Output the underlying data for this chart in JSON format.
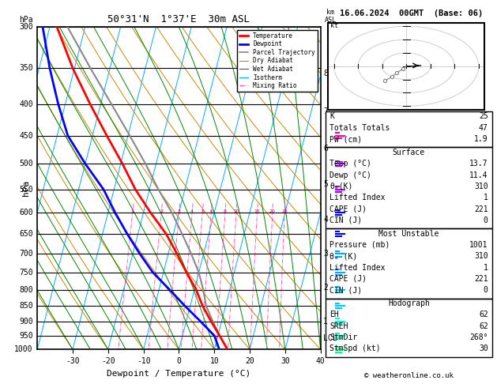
{
  "title_left": "50°31'N  1°37'E  30m ASL",
  "title_right": "16.06.2024  00GMT  (Base: 06)",
  "xlabel": "Dewpoint / Temperature (°C)",
  "ylabel_left": "hPa",
  "pressure_levels": [
    300,
    350,
    400,
    450,
    500,
    550,
    600,
    650,
    700,
    750,
    800,
    850,
    900,
    950,
    1000
  ],
  "xtick_vals": [
    -30,
    -20,
    -10,
    0,
    10,
    20,
    30,
    40
  ],
  "xlim": [
    -40,
    40
  ],
  "km_ticks": [
    1,
    2,
    3,
    4,
    5,
    6,
    7,
    8
  ],
  "km_to_p": {
    "1": 900,
    "2": 795,
    "3": 700,
    "4": 616,
    "5": 540,
    "6": 472,
    "7": 411,
    "8": 357
  },
  "lcl_pressure": 960,
  "temperature_profile": {
    "pressure": [
      1000,
      950,
      900,
      850,
      800,
      750,
      700,
      650,
      600,
      550,
      500,
      450,
      400,
      350,
      300
    ],
    "temp": [
      13.7,
      10.5,
      7.0,
      3.5,
      0.5,
      -3.5,
      -7.5,
      -12.0,
      -18.0,
      -24.0,
      -29.5,
      -36.0,
      -43.0,
      -50.5,
      -58.0
    ]
  },
  "dewpoint_profile": {
    "pressure": [
      1000,
      950,
      900,
      850,
      800,
      750,
      700,
      650,
      600,
      550,
      500,
      450,
      400,
      350,
      300
    ],
    "temp": [
      11.4,
      9.0,
      4.0,
      -1.5,
      -7.0,
      -13.0,
      -18.0,
      -23.0,
      -28.0,
      -33.0,
      -40.0,
      -47.0,
      -52.0,
      -57.0,
      -62.0
    ]
  },
  "parcel_profile": {
    "pressure": [
      1000,
      950,
      900,
      850,
      800,
      750,
      700,
      650,
      600,
      550,
      500,
      450,
      400,
      350,
      300
    ],
    "temp": [
      13.7,
      10.5,
      7.5,
      4.5,
      2.5,
      0.0,
      -3.5,
      -7.5,
      -12.0,
      -17.5,
      -23.0,
      -29.5,
      -37.0,
      -45.5,
      -55.0
    ]
  },
  "colors": {
    "temperature": "#ff0000",
    "dewpoint": "#0000ff",
    "parcel": "#888888",
    "dry_adiabat": "#cc8800",
    "wet_adiabat": "#008800",
    "isotherm": "#00aaff",
    "mixing_ratio": "#ff44aa"
  },
  "legend_items": [
    {
      "label": "Temperature",
      "color": "#ff0000",
      "lw": 2.0,
      "ls": "-"
    },
    {
      "label": "Dewpoint",
      "color": "#0000ff",
      "lw": 2.0,
      "ls": "-"
    },
    {
      "label": "Parcel Trajectory",
      "color": "#888888",
      "lw": 1.2,
      "ls": "-"
    },
    {
      "label": "Dry Adiabat",
      "color": "#cc8800",
      "lw": 0.8,
      "ls": "-"
    },
    {
      "label": "Wet Adiabat",
      "color": "#008800",
      "lw": 0.8,
      "ls": "-"
    },
    {
      "label": "Isotherm",
      "color": "#00aaff",
      "lw": 0.8,
      "ls": "-"
    },
    {
      "label": "Mixing Ratio",
      "color": "#ff44aa",
      "lw": 0.7,
      "ls": "-."
    }
  ],
  "mixing_ratio_vals": [
    1,
    2,
    3,
    4,
    5,
    6,
    8,
    10,
    15,
    20,
    25
  ],
  "right_panel": {
    "K": 25,
    "TotalsT": 47,
    "PW_cm": 1.9,
    "surf_temp": 13.7,
    "surf_dewp": 11.4,
    "surf_theta_e": 310,
    "surf_lifted_index": 1,
    "surf_CAPE": 221,
    "surf_CIN": 0,
    "mu_pressure": 1001,
    "mu_theta_e": 310,
    "mu_lifted_index": 1,
    "mu_CAPE": 221,
    "mu_CIN": 0,
    "EH": 62,
    "SREH": 62,
    "StmDir": 268,
    "StmSpd": 30
  },
  "wind_barb_colors": {
    "300": "#ff4400",
    "350": "#ff4400",
    "400": "#ff00aa",
    "450": "#ff00aa",
    "500": "#aa00ff",
    "550": "#aa00ff",
    "600": "#0000ff",
    "650": "#0000ff",
    "700": "#00aaff",
    "750": "#00aaff",
    "800": "#00ccff",
    "850": "#00ccff",
    "900": "#00ffcc",
    "950": "#00ffcc",
    "1000": "#00ff88"
  }
}
